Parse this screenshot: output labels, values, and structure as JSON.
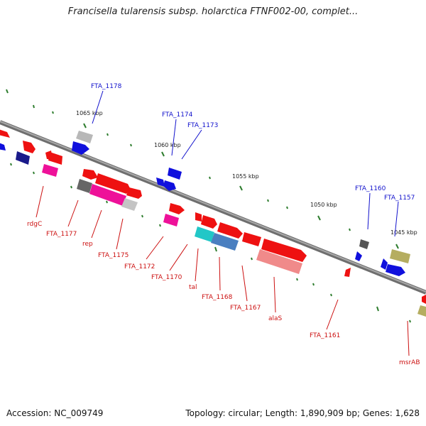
{
  "title": "Francisella tularensis subsp. holarctica FTNF002-00, complet...",
  "footer": {
    "accession": "Accession: NC_009749",
    "summary": "Topology: circular; Length: 1,890,909 bp; Genes: 1,628"
  },
  "colors": {
    "backbone": "#8a8a8a",
    "tick": "#2e7d2e",
    "label_top": "#1010cc",
    "label_bottom": "#cc1010"
  },
  "scale_labels": [
    "1065 kbp",
    "1060 kbp",
    "1055 kbp",
    "1050 kbp",
    "1045 kbp"
  ],
  "labels_top": [
    "FTA_1178",
    "FTA_1174",
    "FTA_1173",
    "FTA_1160",
    "FTA_1157"
  ],
  "labels_bottom": [
    "rdgC",
    "FTA_1177",
    "rep",
    "FTA_1175",
    "FTA_1172",
    "FTA_1170",
    "tal",
    "FTA_1168",
    "FTA_1167",
    "alaS",
    "FTA_1161",
    "msrAB"
  ]
}
